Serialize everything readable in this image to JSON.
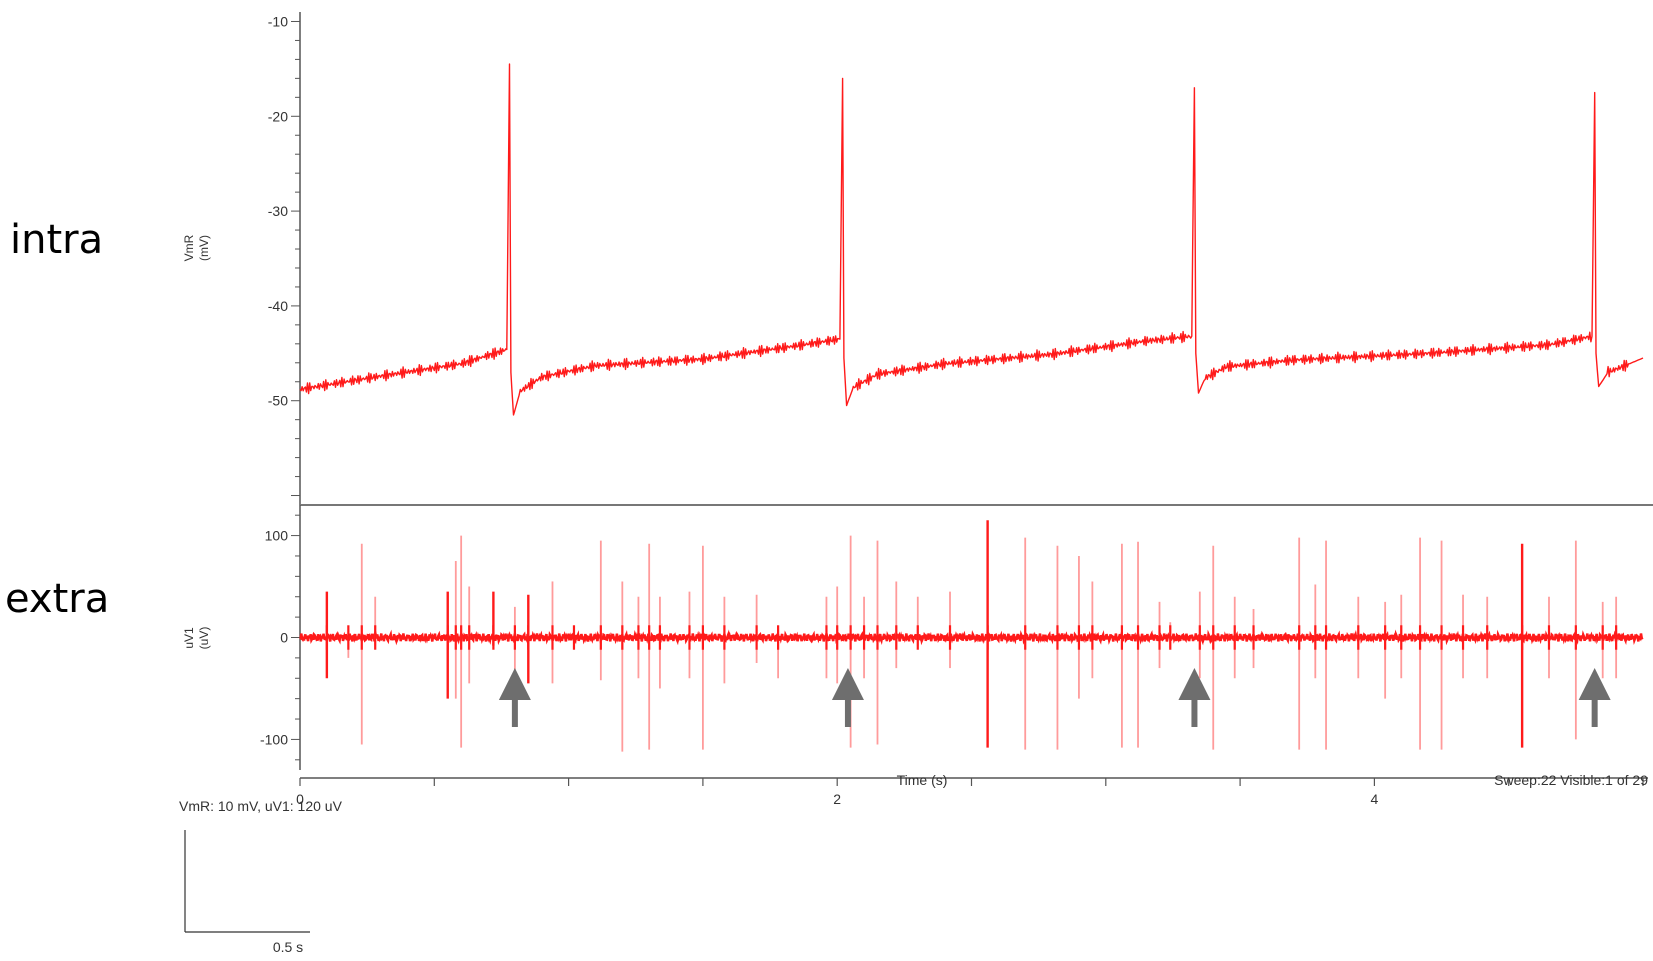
{
  "labels": {
    "intra": "intra",
    "extra": "extra"
  },
  "colors": {
    "trace": "#ff1a1a",
    "trace_light": "#ff9b9b",
    "axis": "#555555",
    "arrow": "#6e6e6e"
  },
  "chart_data": [
    {
      "type": "line",
      "panel": "intra",
      "ylabel": "VmR (mV)",
      "ylabel_lines": [
        "VmR",
        "(mV)"
      ],
      "ylim": [
        -61,
        -9
      ],
      "yticks": [
        -10,
        -20,
        -30,
        -40,
        -50
      ],
      "ytick_labels": [
        "-10",
        "-20",
        "-30",
        "-40",
        "-50"
      ],
      "xlim": [
        0,
        5.0
      ],
      "series": [
        {
          "x": [
            0,
            0.3,
            0.6,
            0.77,
            0.78,
            0.785,
            0.795,
            0.82,
            0.9,
            1.1,
            1.5,
            1.85,
            2.01,
            2.02,
            2.025,
            2.035,
            2.06,
            2.15,
            2.4,
            2.8,
            3.15,
            3.32,
            3.33,
            3.335,
            3.345,
            3.37,
            3.45,
            3.7,
            4.2,
            4.65,
            4.81,
            4.82,
            4.825,
            4.835,
            4.87,
            4.95,
            5.0
          ],
          "y": [
            -48.8,
            -47.4,
            -46.1,
            -44.6,
            -14.5,
            -47.0,
            -51.5,
            -49.0,
            -47.5,
            -46.3,
            -45.6,
            -44.2,
            -43.5,
            -16.0,
            -45.5,
            -50.5,
            -48.6,
            -47.2,
            -46.1,
            -45.1,
            -43.7,
            -43.2,
            -17.0,
            -45.0,
            -49.2,
            -47.6,
            -46.4,
            -45.7,
            -45.0,
            -44.1,
            -43.2,
            -17.5,
            -45.0,
            -48.5,
            -47.0,
            -46.1,
            -45.5
          ]
        }
      ]
    },
    {
      "type": "line",
      "panel": "extra",
      "ylabel": "uV1 (uV)",
      "ylabel_lines": [
        "uV1",
        "(uV)"
      ],
      "ylim": [
        -130,
        130
      ],
      "yticks": [
        100,
        0,
        -100
      ],
      "ytick_labels": [
        "100",
        "0",
        "-100"
      ],
      "xlabel": "Time (s)",
      "xlim": [
        0,
        5.0
      ],
      "xticks": [
        0,
        2,
        4
      ],
      "xtick_labels": [
        "0",
        "2",
        "4"
      ],
      "baseline_noise_uV": 4,
      "spikes": {
        "t": [
          0.1,
          0.18,
          0.23,
          0.28,
          0.55,
          0.58,
          0.6,
          0.63,
          0.72,
          0.8,
          0.85,
          0.94,
          1.02,
          1.12,
          1.2,
          1.26,
          1.3,
          1.34,
          1.45,
          1.5,
          1.58,
          1.7,
          1.78,
          1.96,
          2.0,
          2.05,
          2.1,
          2.15,
          2.22,
          2.3,
          2.42,
          2.56,
          2.7,
          2.82,
          2.9,
          2.95,
          3.06,
          3.12,
          3.2,
          3.24,
          3.35,
          3.4,
          3.48,
          3.55,
          3.72,
          3.78,
          3.82,
          3.94,
          4.04,
          4.1,
          4.17,
          4.25,
          4.33,
          4.42,
          4.55,
          4.65,
          4.75,
          4.85,
          4.9
        ],
        "pos": [
          45,
          8,
          92,
          40,
          45,
          75,
          100,
          50,
          45,
          30,
          42,
          55,
          8,
          95,
          55,
          40,
          92,
          40,
          45,
          90,
          40,
          42,
          5,
          40,
          50,
          100,
          40,
          95,
          55,
          40,
          45,
          115,
          98,
          90,
          80,
          55,
          92,
          94,
          35,
          15,
          45,
          90,
          40,
          28,
          98,
          52,
          95,
          40,
          35,
          42,
          98,
          95,
          42,
          40,
          92,
          40,
          95,
          35,
          40
        ],
        "neg": [
          -40,
          -20,
          -105,
          -8,
          -60,
          -60,
          -108,
          -45,
          -8,
          -40,
          -45,
          -45,
          -10,
          -42,
          -112,
          -40,
          -110,
          -50,
          -40,
          -110,
          -45,
          -25,
          -40,
          -40,
          -45,
          -108,
          -40,
          -105,
          -30,
          -8,
          -30,
          -108,
          -110,
          -110,
          -60,
          -40,
          -108,
          -108,
          -30,
          -10,
          -40,
          -110,
          -40,
          -30,
          -110,
          -40,
          -110,
          -40,
          -60,
          -40,
          -110,
          -110,
          -40,
          -40,
          -108,
          -40,
          -100,
          -40,
          -40
        ],
        "dark": [
          true,
          false,
          false,
          false,
          true,
          false,
          false,
          false,
          true,
          false,
          true,
          false,
          false,
          false,
          false,
          false,
          false,
          false,
          false,
          false,
          false,
          false,
          false,
          false,
          false,
          false,
          false,
          false,
          false,
          false,
          false,
          true,
          false,
          false,
          false,
          false,
          false,
          false,
          false,
          false,
          false,
          false,
          false,
          false,
          false,
          false,
          false,
          false,
          false,
          false,
          false,
          false,
          false,
          false,
          true,
          false,
          false,
          false,
          false
        ]
      },
      "arrows_at": [
        0.8,
        2.04,
        3.33,
        4.82
      ]
    }
  ],
  "footer": {
    "xlabel": "Time (s)",
    "sweep_info": "Sweep:22 Visible:1 of 29",
    "scale_text": "VmR: 10 mV, uV1: 120 uV",
    "scale_time": "0.5 s"
  }
}
